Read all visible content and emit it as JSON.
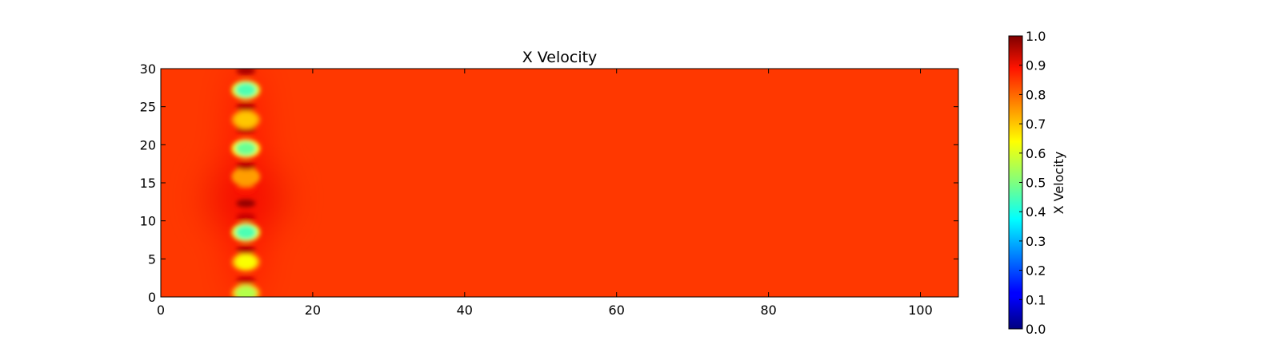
{
  "chart_data": {
    "type": "heatmap",
    "title": "X Velocity",
    "xlabel": "",
    "ylabel": "",
    "xlim": [
      0,
      105
    ],
    "ylim": [
      0,
      30
    ],
    "x_ticks": [
      0,
      20,
      40,
      60,
      80,
      100
    ],
    "y_ticks": [
      0,
      5,
      10,
      15,
      20,
      25,
      30
    ],
    "colormap": "jet",
    "colorbar": {
      "label": "X Velocity",
      "range": [
        0.0,
        1.0
      ],
      "ticks": [
        "0.0",
        "0.1",
        "0.2",
        "0.3",
        "0.4",
        "0.5",
        "0.6",
        "0.7",
        "0.8",
        "0.9",
        "1.0"
      ]
    },
    "background_value": 0.82,
    "column_x": 11.2,
    "features": [
      {
        "y": 0.5,
        "value": 0.55
      },
      {
        "y": 2.2,
        "value": 0.93
      },
      {
        "y": 4.6,
        "value": 0.62
      },
      {
        "y": 6.2,
        "value": 0.95
      },
      {
        "y": 8.5,
        "value": 0.45
      },
      {
        "y": 10.5,
        "value": 0.93
      },
      {
        "y": 12.3,
        "value": 0.98
      },
      {
        "y": 14.2,
        "value": 0.85
      },
      {
        "y": 15.8,
        "value": 0.72
      },
      {
        "y": 17.2,
        "value": 0.95
      },
      {
        "y": 19.5,
        "value": 0.48
      },
      {
        "y": 22.0,
        "value": 0.95
      },
      {
        "y": 23.3,
        "value": 0.68
      },
      {
        "y": 25.0,
        "value": 0.95
      },
      {
        "y": 27.2,
        "value": 0.45
      },
      {
        "y": 29.7,
        "value": 0.96
      }
    ],
    "grid": false
  }
}
